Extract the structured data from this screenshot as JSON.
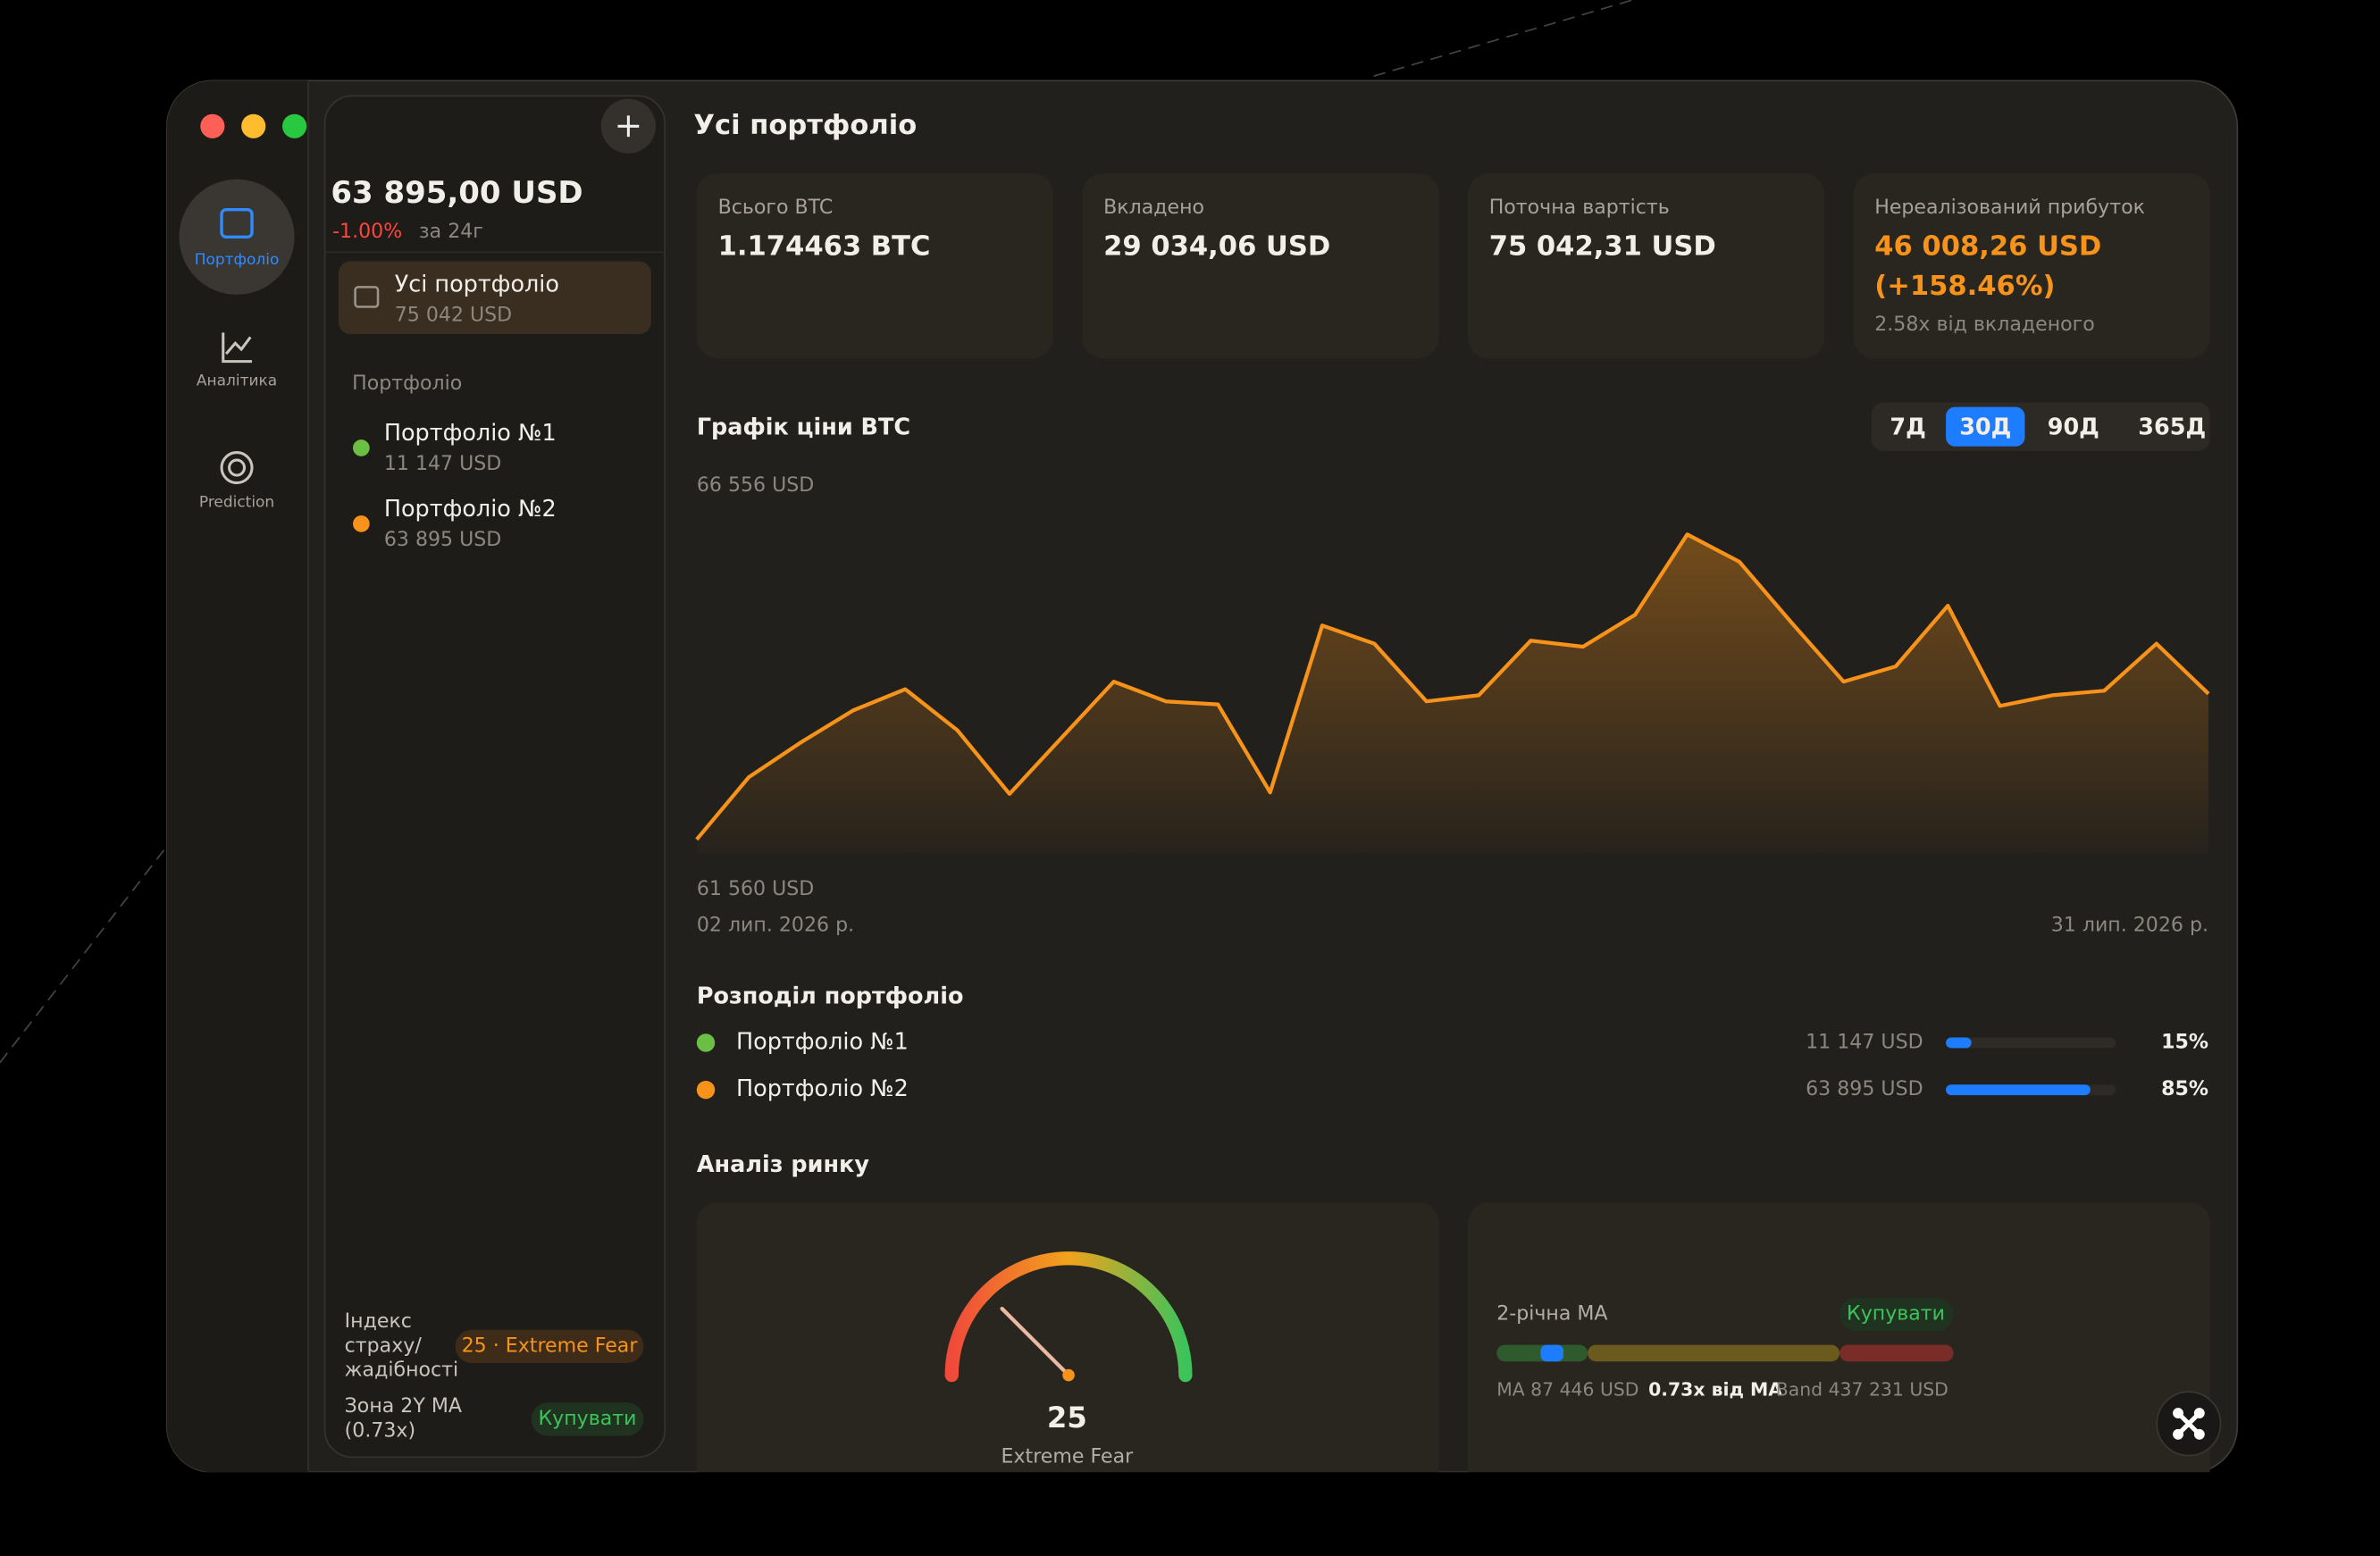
{
  "sidebar": {
    "nav": [
      "Портфоліо",
      "Аналітика",
      "Prediction"
    ]
  },
  "list": {
    "total": "63 895,00 USD",
    "change": "-1.00%",
    "change_period": "за 24г",
    "all": {
      "name": "Усі портфоліо",
      "value": "75 042 USD"
    },
    "section": "Портфоліо",
    "items": [
      {
        "name": "Портфоліо №1",
        "value": "11 147 USD",
        "color": "#6cbf45"
      },
      {
        "name": "Портфоліо №2",
        "value": "63 895 USD",
        "color": "#f7931a"
      }
    ],
    "fear_label": [
      "Індекс",
      "страху/",
      "жадібності"
    ],
    "fear_badge": "25 · Extreme Fear",
    "zone_label": [
      "Зона 2Y MA",
      "(0.73x)"
    ],
    "zone_badge": "Купувати"
  },
  "header": {
    "title": "Усі портфоліо"
  },
  "stats": [
    {
      "label": "Всього BTC",
      "value": "1.174463 BTC"
    },
    {
      "label": "Вкладено",
      "value": "29 034,06 USD"
    },
    {
      "label": "Поточна вартість",
      "value": "75 042,31 USD"
    },
    {
      "label": "Нереалізований прибуток",
      "value": [
        "46 008,26 USD",
        "(+158.46%)"
      ],
      "sub": "2.58x від вкладеного"
    }
  ],
  "chart_data": {
    "type": "line",
    "title": "Графік ціни BTC",
    "ranges": [
      "7Д",
      "30Д",
      "90Д",
      "365Д"
    ],
    "active_range": 1,
    "categories": [
      "02 лип. 2026 р.",
      null,
      null,
      null,
      null,
      null,
      null,
      null,
      null,
      null,
      null,
      null,
      null,
      null,
      null,
      null,
      null,
      null,
      null,
      null,
      null,
      null,
      null,
      null,
      null,
      null,
      null,
      null,
      null,
      "31 лип. 2026 р."
    ],
    "values": [
      61560,
      62579,
      63151,
      63673,
      64021,
      63350,
      62306,
      63226,
      64145,
      63822,
      63773,
      62331,
      65065,
      64767,
      63822,
      63922,
      64817,
      64717,
      65239,
      66556,
      66109,
      65115,
      64145,
      64394,
      65388,
      63748,
      63922,
      63996,
      64767,
      63947
    ],
    "ylim": [
      61560,
      66556
    ],
    "yticks": [
      {
        "value": 66556,
        "label": "66 556 USD"
      },
      {
        "value": 61560,
        "label": "61 560 USD"
      }
    ],
    "color": "#f7931a"
  },
  "distribution": {
    "title": "Розподіл портфоліо",
    "items": [
      {
        "name": "Портфоліо №1",
        "amount": "11 147 USD",
        "percent": 15,
        "percent_label": "15%",
        "color": "#6cbf45"
      },
      {
        "name": "Портфоліо №2",
        "amount": "63 895 USD",
        "percent": 85,
        "percent_label": "85%",
        "color": "#f7931a"
      }
    ]
  },
  "market": {
    "title": "Аналіз ринку",
    "gauge": {
      "value": 25,
      "label": "Extreme Fear",
      "lim": [
        0,
        100
      ]
    },
    "ma": {
      "title": "2-річна MA",
      "badge": "Купувати",
      "ma": "MA 87 446 USD",
      "ratio": "0.73x від MA",
      "band": "Band 437 231 USD"
    }
  }
}
